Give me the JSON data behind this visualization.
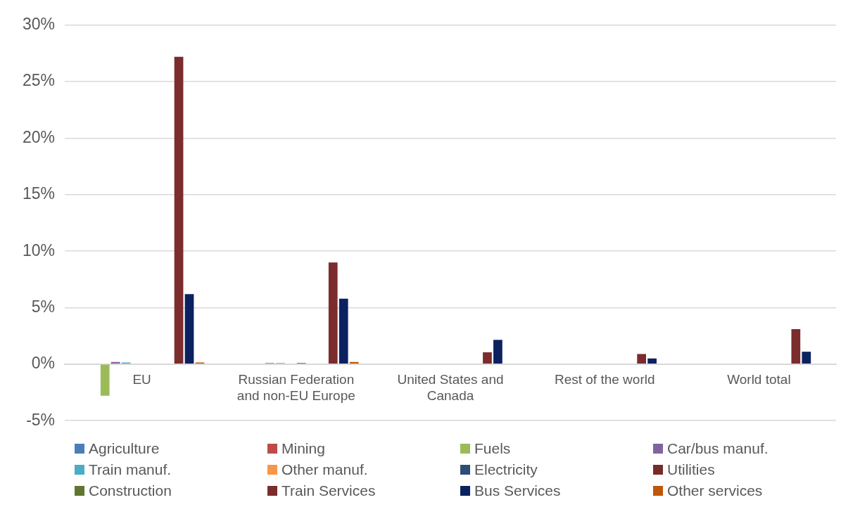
{
  "chart_data": {
    "type": "bar",
    "categories": [
      "EU",
      "Russian Federation and non-EU Europe",
      "United States and Canada",
      "Rest of the world",
      "World total"
    ],
    "series": [
      {
        "name": "Agriculture",
        "color": "#4a7ebb",
        "values": [
          0,
          0,
          0,
          0,
          0
        ]
      },
      {
        "name": "Mining",
        "color": "#be4b48",
        "values": [
          null,
          0,
          0,
          0,
          0
        ]
      },
      {
        "name": "Fuels",
        "color": "#9bbb59",
        "values": [
          -2.8,
          0,
          0,
          0,
          0
        ]
      },
      {
        "name": "Car/bus manuf.",
        "color": "#8064a2",
        "values": [
          0.2,
          0.1,
          0,
          0,
          0
        ]
      },
      {
        "name": "Train manuf.",
        "color": "#4bacc6",
        "values": [
          0.15,
          0.1,
          0,
          0,
          null
        ]
      },
      {
        "name": "Other manuf.",
        "color": "#f79646",
        "values": [
          0,
          0,
          0,
          0,
          0
        ]
      },
      {
        "name": "Electricity",
        "color": "#2c4d75",
        "values": [
          0,
          0.1,
          0,
          0,
          0
        ]
      },
      {
        "name": "Utilities",
        "color": "#772c2a",
        "values": [
          0,
          null,
          0,
          0,
          0
        ]
      },
      {
        "name": "Construction",
        "color": "#5f7530",
        "values": [
          0,
          0,
          0,
          0,
          0
        ]
      },
      {
        "name": "Train Services",
        "color": "#7b2c2c",
        "values": [
          27.2,
          9,
          1.05,
          0.9,
          3.1
        ]
      },
      {
        "name": "Bus Services",
        "color": "#0b2160",
        "values": [
          6.2,
          5.8,
          2.15,
          0.5,
          1.1
        ]
      },
      {
        "name": "Other services",
        "color": "#c0560a",
        "values": [
          0.15,
          0.2,
          0,
          0,
          0
        ]
      }
    ],
    "ylim": [
      -5,
      30
    ],
    "yticks": [
      {
        "value": -5,
        "label": "-5%"
      },
      {
        "value": 0,
        "label": "0%"
      },
      {
        "value": 5,
        "label": "5%"
      },
      {
        "value": 10,
        "label": "10%"
      },
      {
        "value": 15,
        "label": "15%"
      },
      {
        "value": 20,
        "label": "20%"
      },
      {
        "value": 25,
        "label": "25%"
      },
      {
        "value": 30,
        "label": "30%"
      }
    ],
    "grid": "y",
    "legend": "bottom"
  }
}
